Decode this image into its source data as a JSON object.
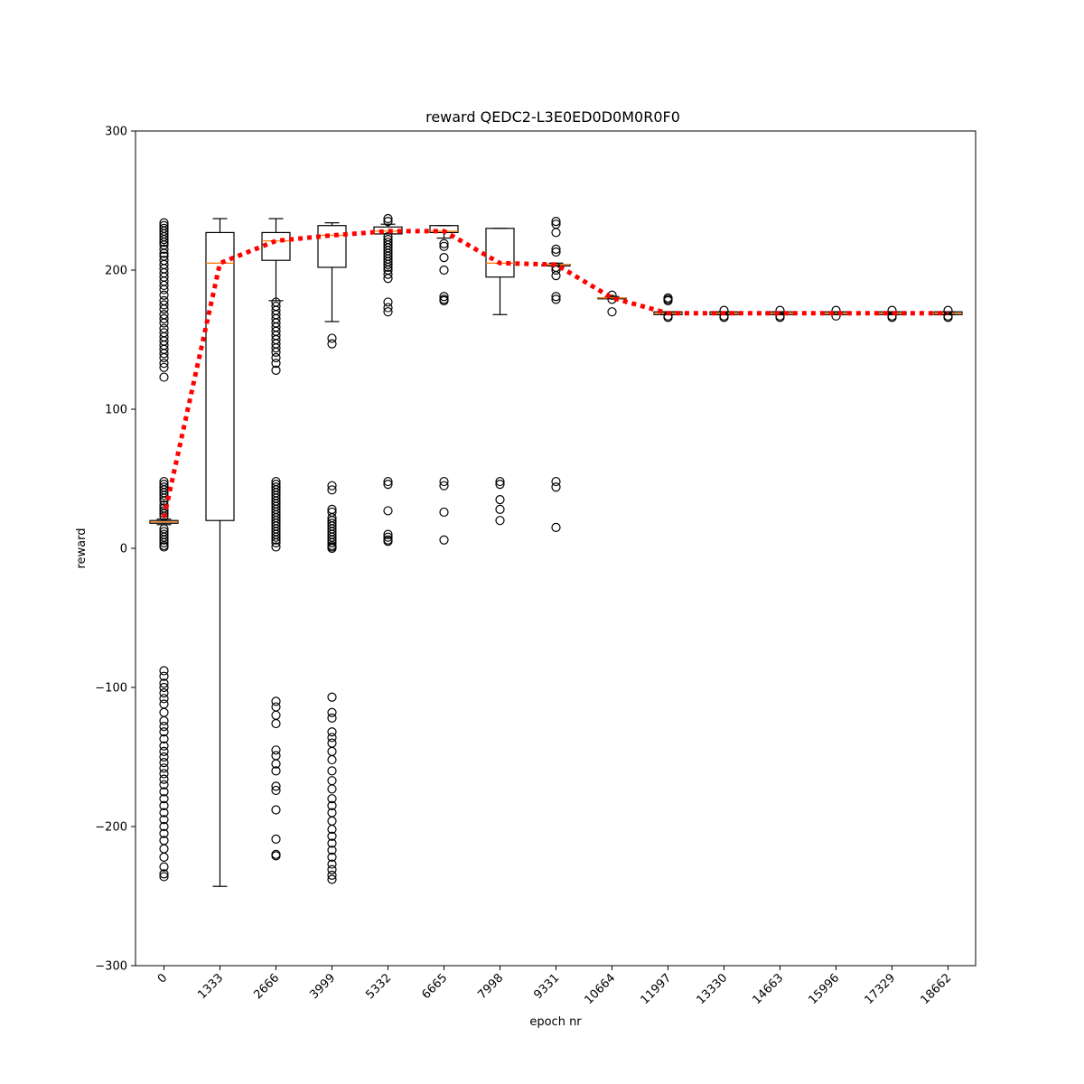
{
  "chart_data": {
    "type": "box",
    "title": "reward QEDC2-L3E0ED0D0M0R0F0",
    "xlabel": "epoch nr",
    "ylabel": "reward",
    "ylim": [
      -300,
      300
    ],
    "yticks": [
      -300,
      -200,
      -100,
      0,
      100,
      200,
      300
    ],
    "ytick_labels": [
      "−300",
      "−200",
      "−100",
      "0",
      "100",
      "200",
      "300"
    ],
    "categories": [
      "0",
      "1333",
      "2666",
      "3999",
      "5332",
      "6665",
      "7998",
      "9331",
      "10664",
      "11997",
      "13330",
      "14663",
      "15996",
      "17329",
      "18662"
    ],
    "colors": {
      "box": "#000000",
      "median": "#ff7f0e",
      "mean_line": "#ff0000",
      "flier": "#000000"
    },
    "boxes": [
      {
        "q1": 18,
        "median": 19,
        "q3": 20,
        "whisker_low": 17,
        "whisker_high": 21,
        "fliers": [
          234,
          232,
          230,
          228,
          226,
          224,
          222,
          220,
          218,
          215,
          212,
          210,
          207,
          204,
          201,
          198,
          195,
          192,
          189,
          186,
          182,
          178,
          175,
          172,
          168,
          165,
          162,
          158,
          155,
          152,
          149,
          146,
          143,
          140,
          137,
          133,
          130,
          123,
          48,
          46,
          44,
          42,
          40,
          38,
          36,
          34,
          31,
          29,
          27,
          25,
          23,
          14,
          12,
          10,
          8,
          6,
          4,
          2,
          1,
          -88,
          -92,
          -97,
          -100,
          -104,
          -108,
          -112,
          -118,
          -124,
          -128,
          -132,
          -137,
          -142,
          -146,
          -150,
          -154,
          -158,
          -162,
          -166,
          -170,
          -175,
          -180,
          -185,
          -190,
          -195,
          -200,
          -205,
          -210,
          -216,
          -222,
          -229,
          -234,
          -236
        ]
      },
      {
        "q1": 20,
        "median": 205,
        "q3": 227,
        "whisker_low": -243,
        "whisker_high": 237,
        "fliers": []
      },
      {
        "q1": 207,
        "median": 221,
        "q3": 227,
        "whisker_low": 178,
        "whisker_high": 237,
        "fliers": [
          177,
          174,
          171,
          168,
          165,
          162,
          159,
          156,
          153,
          150,
          147,
          144,
          141,
          137,
          133,
          128,
          48,
          46,
          44,
          42,
          40,
          38,
          36,
          34,
          32,
          30,
          28,
          26,
          24,
          22,
          20,
          18,
          16,
          14,
          12,
          10,
          8,
          6,
          4,
          1,
          -110,
          -114,
          -120,
          -126,
          -145,
          -149,
          -155,
          -160,
          -171,
          -174,
          -188,
          -209,
          -220,
          -221
        ]
      },
      {
        "q1": 202,
        "median": 225,
        "q3": 232,
        "whisker_low": 163,
        "whisker_high": 234,
        "fliers": [
          151,
          147,
          45,
          42,
          28,
          26,
          22,
          20,
          18,
          16,
          14,
          12,
          10,
          8,
          6,
          4,
          2,
          1,
          0,
          -107,
          -118,
          -122,
          -132,
          -136,
          -140,
          -146,
          -152,
          -160,
          -167,
          -173,
          -180,
          -185,
          -190,
          -196,
          -202,
          -207,
          -212,
          -217,
          -222,
          -227,
          -231,
          -235,
          -238
        ]
      },
      {
        "q1": 226,
        "median": 228,
        "q3": 231,
        "whisker_low": 226,
        "whisker_high": 233,
        "fliers": [
          237,
          235,
          224,
          222,
          220,
          218,
          216,
          214,
          212,
          210,
          208,
          206,
          204,
          202,
          200,
          197,
          194,
          177,
          173,
          170,
          48,
          46,
          27,
          10,
          8,
          6,
          5
        ]
      },
      {
        "q1": 227,
        "median": 228,
        "q3": 232,
        "whisker_low": 223,
        "whisker_high": 232,
        "fliers": [
          219,
          217,
          209,
          200,
          181,
          179,
          178,
          48,
          45,
          26,
          6
        ]
      },
      {
        "q1": 195,
        "median": 205,
        "q3": 230,
        "whisker_low": 168,
        "whisker_high": 230,
        "fliers": [
          48,
          46,
          35,
          28,
          20
        ]
      },
      {
        "q1": 203,
        "median": 204,
        "q3": 204,
        "whisker_low": 203,
        "whisker_high": 205,
        "fliers": [
          235,
          233,
          227,
          215,
          213,
          202,
          200,
          196,
          181,
          179,
          48,
          44,
          15
        ]
      },
      {
        "q1": 180,
        "median": 180,
        "q3": 180,
        "whisker_low": 180,
        "whisker_high": 181,
        "fliers": [
          182,
          179,
          170
        ]
      },
      {
        "q1": 168,
        "median": 169,
        "q3": 170,
        "whisker_low": 168,
        "whisker_high": 170,
        "fliers": [
          180,
          179,
          178,
          167,
          166
        ]
      },
      {
        "q1": 168,
        "median": 169,
        "q3": 170,
        "whisker_low": 168,
        "whisker_high": 170,
        "fliers": [
          171,
          167,
          166
        ]
      },
      {
        "q1": 168,
        "median": 169,
        "q3": 170,
        "whisker_low": 168,
        "whisker_high": 170,
        "fliers": [
          171,
          167,
          166
        ]
      },
      {
        "q1": 168,
        "median": 169,
        "q3": 170,
        "whisker_low": 168,
        "whisker_high": 170,
        "fliers": [
          171,
          167
        ]
      },
      {
        "q1": 168,
        "median": 169,
        "q3": 170,
        "whisker_low": 168,
        "whisker_high": 170,
        "fliers": [
          171,
          167,
          166
        ]
      },
      {
        "q1": 168,
        "median": 169,
        "q3": 170,
        "whisker_low": 168,
        "whisker_high": 170,
        "fliers": [
          171,
          167,
          166
        ]
      }
    ],
    "mean_line": {
      "style": "dotted",
      "values": [
        22,
        205,
        221,
        225,
        228,
        228,
        205,
        204,
        180,
        169,
        169,
        169,
        169,
        169,
        169
      ]
    }
  }
}
